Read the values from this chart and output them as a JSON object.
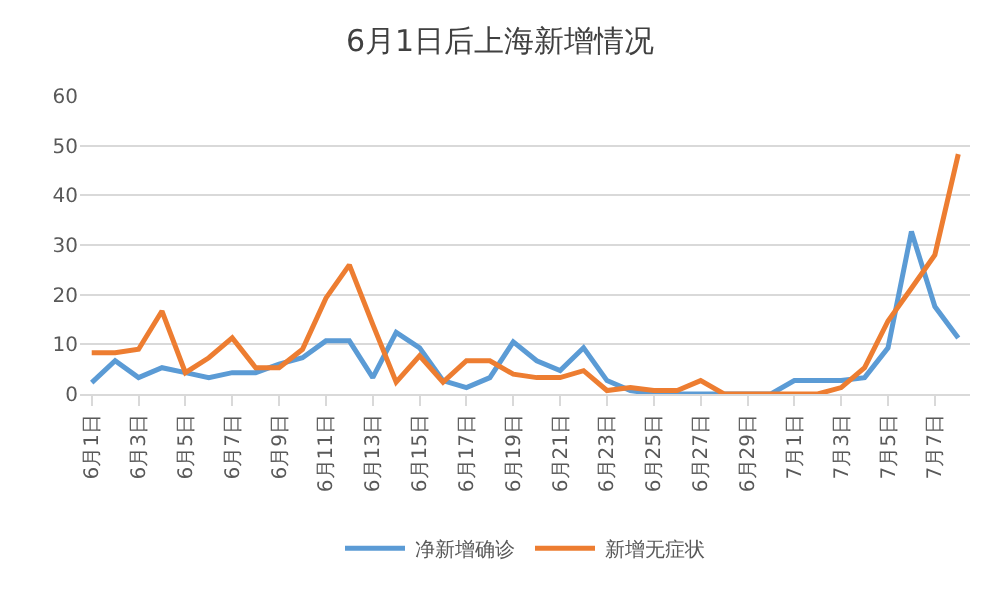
{
  "chart_data": {
    "type": "line",
    "title": "6月1日后上海新增情况",
    "categories": [
      "6月1日",
      null,
      "6月3日",
      null,
      "6月5日",
      null,
      "6月7日",
      null,
      "6月9日",
      null,
      "6月11日",
      null,
      "6月13日",
      null,
      "6月15日",
      null,
      "6月17日",
      null,
      "6月19日",
      null,
      "6月21日",
      null,
      "6月23日",
      null,
      "6月25日",
      null,
      "6月27日",
      null,
      "6月29日",
      null,
      "7月1日",
      null,
      "7月3日",
      null,
      "7月5日",
      null,
      "7月7日",
      null
    ],
    "series": [
      {
        "name": "净新增确诊",
        "color": "#5b9bd5",
        "values": [
          2.3,
          6.7,
          3.3,
          5.3,
          4.3,
          3.3,
          4.3,
          4.3,
          6,
          7.3,
          10.7,
          10.7,
          3.3,
          12.4,
          9.3,
          2.7,
          1.3,
          3.3,
          10.5,
          6.7,
          4.7,
          9.3,
          2.7,
          0.7,
          0,
          0,
          0,
          0,
          0,
          0,
          2.7,
          2.7,
          2.7,
          3.3,
          9.3,
          32.7,
          17.6,
          11.3
        ]
      },
      {
        "name": "新增无症状",
        "color": "#ed7d31",
        "values": [
          8.3,
          8.3,
          9,
          16.7,
          4.3,
          7.3,
          11.3,
          5.3,
          5.3,
          9,
          19.3,
          26,
          14,
          2.4,
          7.7,
          2.4,
          6.7,
          6.7,
          4,
          3.3,
          3.3,
          4.7,
          0.7,
          1.3,
          0.7,
          0.7,
          2.7,
          0,
          0,
          0,
          0,
          0,
          1.3,
          5.3,
          14.7,
          21.3,
          28,
          48.3
        ]
      }
    ],
    "ylim": [
      0,
      60
    ],
    "yticks": [
      0,
      10,
      20,
      30,
      40,
      50,
      60
    ],
    "grid": "y",
    "legend": "bottom"
  }
}
